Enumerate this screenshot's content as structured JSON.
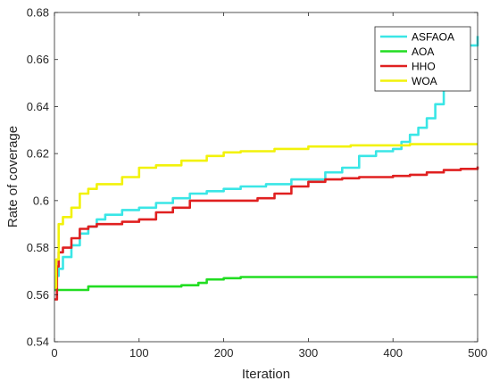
{
  "chart_data": {
    "type": "line",
    "title": "",
    "xlabel": "Iteration",
    "ylabel": "Rate of coverage",
    "xlim": [
      0,
      500
    ],
    "ylim": [
      0.54,
      0.68
    ],
    "xticks": [
      0,
      100,
      200,
      300,
      400,
      500
    ],
    "yticks": [
      0.54,
      0.56,
      0.58,
      0.6,
      0.62,
      0.64,
      0.66,
      0.68
    ],
    "ytick_labels": [
      "0.54",
      "0.56",
      "0.58",
      "0.6",
      "0.62",
      "0.64",
      "0.66",
      "0.68"
    ],
    "grid": false,
    "legend_position": "top-right",
    "series": [
      {
        "name": "ASFAOA",
        "color": "#3ae6e6",
        "points": [
          [
            0,
            0.562
          ],
          [
            2,
            0.568
          ],
          [
            5,
            0.571
          ],
          [
            10,
            0.576
          ],
          [
            20,
            0.581
          ],
          [
            30,
            0.586
          ],
          [
            40,
            0.589
          ],
          [
            50,
            0.592
          ],
          [
            60,
            0.594
          ],
          [
            80,
            0.596
          ],
          [
            100,
            0.597
          ],
          [
            120,
            0.599
          ],
          [
            140,
            0.601
          ],
          [
            160,
            0.603
          ],
          [
            180,
            0.604
          ],
          [
            200,
            0.605
          ],
          [
            220,
            0.606
          ],
          [
            250,
            0.607
          ],
          [
            280,
            0.609
          ],
          [
            300,
            0.609
          ],
          [
            320,
            0.612
          ],
          [
            340,
            0.614
          ],
          [
            360,
            0.619
          ],
          [
            380,
            0.621
          ],
          [
            400,
            0.622
          ],
          [
            410,
            0.625
          ],
          [
            420,
            0.628
          ],
          [
            430,
            0.631
          ],
          [
            440,
            0.635
          ],
          [
            450,
            0.641
          ],
          [
            460,
            0.648
          ],
          [
            470,
            0.654
          ],
          [
            480,
            0.66
          ],
          [
            490,
            0.666
          ],
          [
            500,
            0.67
          ]
        ]
      },
      {
        "name": "AOA",
        "color": "#22dd22",
        "points": [
          [
            0,
            0.562
          ],
          [
            20,
            0.562
          ],
          [
            40,
            0.5635
          ],
          [
            100,
            0.5635
          ],
          [
            150,
            0.564
          ],
          [
            170,
            0.565
          ],
          [
            180,
            0.5665
          ],
          [
            200,
            0.567
          ],
          [
            220,
            0.5675
          ],
          [
            300,
            0.5675
          ],
          [
            400,
            0.5675
          ],
          [
            500,
            0.5675
          ]
        ]
      },
      {
        "name": "HHO",
        "color": "#e02020",
        "points": [
          [
            0,
            0.558
          ],
          [
            3,
            0.572
          ],
          [
            5,
            0.578
          ],
          [
            10,
            0.58
          ],
          [
            20,
            0.584
          ],
          [
            30,
            0.588
          ],
          [
            40,
            0.589
          ],
          [
            50,
            0.59
          ],
          [
            80,
            0.591
          ],
          [
            100,
            0.592
          ],
          [
            120,
            0.595
          ],
          [
            140,
            0.597
          ],
          [
            160,
            0.6
          ],
          [
            200,
            0.6
          ],
          [
            220,
            0.6
          ],
          [
            240,
            0.601
          ],
          [
            260,
            0.603
          ],
          [
            280,
            0.606
          ],
          [
            300,
            0.608
          ],
          [
            320,
            0.609
          ],
          [
            340,
            0.6095
          ],
          [
            360,
            0.61
          ],
          [
            400,
            0.6105
          ],
          [
            420,
            0.611
          ],
          [
            440,
            0.612
          ],
          [
            460,
            0.613
          ],
          [
            480,
            0.6135
          ],
          [
            500,
            0.6145
          ]
        ]
      },
      {
        "name": "WOA",
        "color": "#f2f20a",
        "points": [
          [
            0,
            0.563
          ],
          [
            2,
            0.575
          ],
          [
            5,
            0.59
          ],
          [
            10,
            0.593
          ],
          [
            20,
            0.597
          ],
          [
            30,
            0.603
          ],
          [
            40,
            0.605
          ],
          [
            50,
            0.607
          ],
          [
            80,
            0.61
          ],
          [
            100,
            0.614
          ],
          [
            120,
            0.615
          ],
          [
            150,
            0.617
          ],
          [
            180,
            0.619
          ],
          [
            200,
            0.6205
          ],
          [
            220,
            0.621
          ],
          [
            260,
            0.622
          ],
          [
            300,
            0.623
          ],
          [
            350,
            0.6235
          ],
          [
            400,
            0.6235
          ],
          [
            420,
            0.624
          ],
          [
            500,
            0.624
          ]
        ]
      }
    ]
  }
}
